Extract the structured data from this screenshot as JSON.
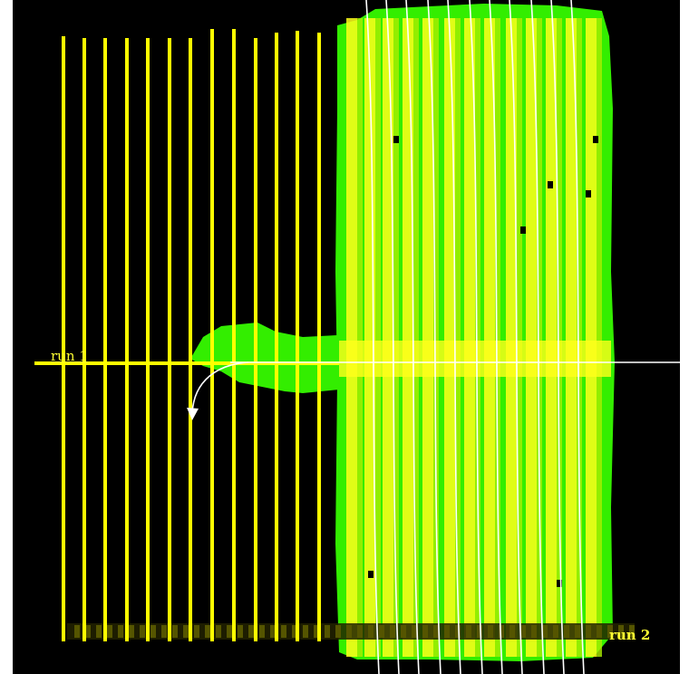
{
  "labels": {
    "run_1": "run 1",
    "run_2": "run 2"
  },
  "colors": {
    "background": "#000000",
    "frame": "#ffffff",
    "path_line": "#ffff00",
    "coverage_primary": "#ffff1a",
    "coverage_secondary": "#33ee00",
    "coverage_tertiary": "#aaee00",
    "crosshair": "#ffffff",
    "arrow": "#ffffff"
  },
  "icons": {
    "turn_arrow": "curved-arrow-icon"
  }
}
